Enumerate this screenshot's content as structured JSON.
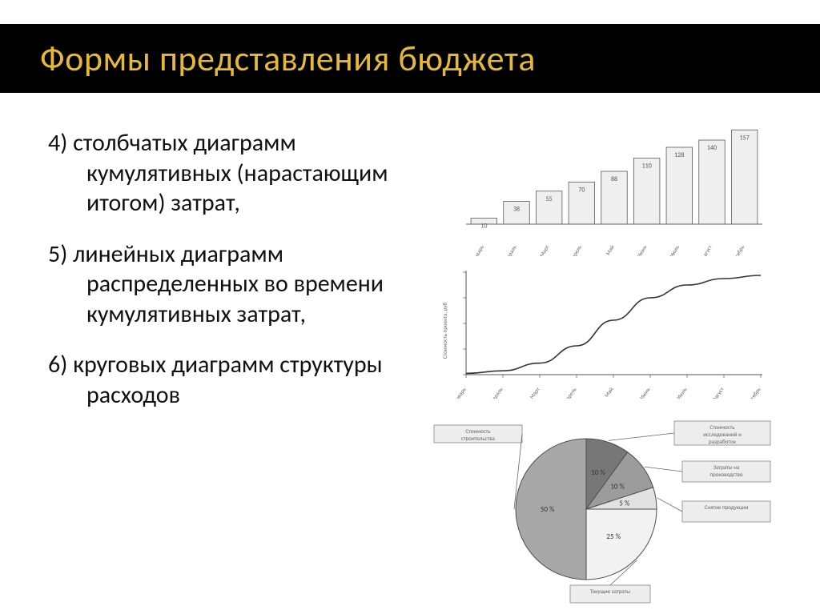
{
  "title": "Формы представления бюджета",
  "bullets": [
    "4) столбчатых диаграмм кумулятивных (нарастающим итогом) затрат,",
    "5) линейных диаграмм распределенных во времени кумулятивных затрат,",
    "6) круговых диаграмм структуры расходов"
  ],
  "text_color": "#111111",
  "title_color": "#e4b93a",
  "title_bg": "#000000",
  "bar_chart": {
    "type": "bar",
    "categories": [
      "Январь",
      "Февраль",
      "Март",
      "Апрель",
      "Май",
      "Июнь",
      "Июль",
      "Август",
      "Сентябрь"
    ],
    "values": [
      10,
      38,
      55,
      70,
      88,
      110,
      128,
      140,
      157
    ],
    "bar_fill": "#efefef",
    "bar_stroke": "#5a5a5a",
    "value_label_color": "#444444",
    "label_fontsize": 8,
    "value_fontsize": 8,
    "axis_color": "#666666",
    "ylim": [
      0,
      160
    ],
    "bar_width": 0.8
  },
  "line_chart": {
    "type": "line",
    "x_categories": [
      "Январь",
      "Февраль",
      "Март",
      "Апрель",
      "Май",
      "Июнь",
      "Июль",
      "Август",
      "Сентябрь"
    ],
    "y_values": [
      2,
      6,
      18,
      45,
      85,
      120,
      140,
      150,
      155
    ],
    "ylabel": "Стоимость проекта, руб",
    "line_color": "#333333",
    "line_width": 1.6,
    "axis_color": "#555555",
    "ylim": [
      0,
      160
    ],
    "label_fontsize": 7
  },
  "pie_chart": {
    "type": "pie",
    "slices": [
      {
        "label": "Стоимость строительства",
        "value": 50,
        "fill": "#a8a8a8",
        "show_pct": "50 %"
      },
      {
        "label": "Стоимость исследований и разработок",
        "value": 10,
        "fill": "#777777",
        "show_pct": "10 %"
      },
      {
        "label": "Затраты на производство",
        "value": 10,
        "fill": "#9c9c9c",
        "show_pct": "10 %"
      },
      {
        "label": "Снятие продукции",
        "value": 5,
        "fill": "#e2e2e2",
        "show_pct": "5 %"
      },
      {
        "label": "Текущие затраты",
        "value": 25,
        "fill": "#f2f2f2",
        "show_pct": "25 %"
      }
    ],
    "stroke": "#4d4d4d",
    "callout_fill": "#ededed",
    "callout_stroke": "#888888",
    "label_fontsize": 8
  }
}
